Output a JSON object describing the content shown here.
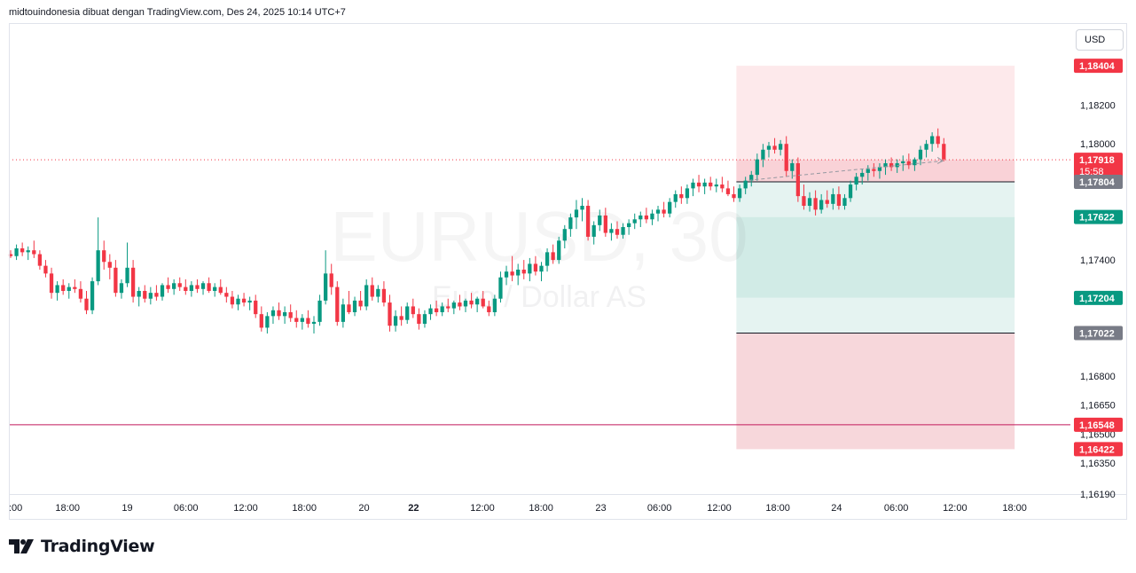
{
  "header": {
    "text": "midtouindonesia dibuat dengan TradingView.com, Des 24, 2025 10:14 UTC+7"
  },
  "currency_button": {
    "label": "USD"
  },
  "watermark": {
    "symbol": "EURUSD, 30",
    "name": "Euro / Dollar AS"
  },
  "brand": {
    "name": "TradingView",
    "logo_icon": "tradingview-logo-icon"
  },
  "colors": {
    "up": "#089981",
    "down": "#f23645",
    "grid_border": "#e0e3eb",
    "stop_zone": "#f7d7db",
    "target_zone_light": "#e5f3f1",
    "target_zone_mid": "#d1ebe6",
    "risk_zone": "#fde9eb",
    "entry_label": "#787b86"
  },
  "chart_data": {
    "type": "candlestick",
    "symbol": "EURUSD",
    "timeframe": "30",
    "ylim": [
      1.1619,
      1.1862
    ],
    "y_ticks": [
      "1,18200",
      "1,18000",
      "1,17400",
      "1,16800",
      "1,16650",
      "1,16500",
      "1,16350",
      "1,16190"
    ],
    "x_ticks": [
      {
        "label": ":00",
        "pos": 0.0,
        "bold": false
      },
      {
        "label": "18:00",
        "pos": 0.058,
        "bold": false
      },
      {
        "label": "19",
        "pos": 0.117,
        "bold": false
      },
      {
        "label": "06:00",
        "pos": 0.175,
        "bold": false
      },
      {
        "label": "12:00",
        "pos": 0.234,
        "bold": false
      },
      {
        "label": "18:00",
        "pos": 0.292,
        "bold": false
      },
      {
        "label": "20",
        "pos": 0.351,
        "bold": false
      },
      {
        "label": "22",
        "pos": 0.4,
        "bold": true
      },
      {
        "label": "12:00",
        "pos": 0.468,
        "bold": false
      },
      {
        "label": "18:00",
        "pos": 0.526,
        "bold": false
      },
      {
        "label": "23",
        "pos": 0.585,
        "bold": false
      },
      {
        "label": "06:00",
        "pos": 0.643,
        "bold": false
      },
      {
        "label": "12:00",
        "pos": 0.702,
        "bold": false
      },
      {
        "label": "18:00",
        "pos": 0.76,
        "bold": false
      },
      {
        "label": "24",
        "pos": 0.818,
        "bold": false
      },
      {
        "label": "06:00",
        "pos": 0.877,
        "bold": false
      },
      {
        "label": "12:00",
        "pos": 0.935,
        "bold": false
      },
      {
        "label": "18:00",
        "pos": 0.994,
        "bold": false
      }
    ],
    "price_labels": [
      {
        "text": "1,18404",
        "value": 1.18404,
        "color": "#f23645"
      },
      {
        "text": "1,17918",
        "sub": "15:58",
        "value": 1.17918,
        "color": "#f23645"
      },
      {
        "text": "1,17804",
        "value": 1.17804,
        "color": "#787b86"
      },
      {
        "text": "1,17622",
        "value": 1.17622,
        "color": "#089981"
      },
      {
        "text": "1,17204",
        "value": 1.17204,
        "color": "#089981"
      },
      {
        "text": "1,17022",
        "value": 1.17022,
        "color": "#787b86"
      },
      {
        "text": "1,16548",
        "value": 1.16548,
        "color": "#f23645"
      },
      {
        "text": "1,16422",
        "value": 1.16422,
        "color": "#f23645"
      }
    ],
    "horizontal_lines": [
      {
        "value": 1.17918,
        "style": "dotted",
        "color": "#f23645"
      },
      {
        "value": 1.16548,
        "style": "solid",
        "color": "#c2185b"
      }
    ],
    "zones": [
      {
        "kind": "risk",
        "top": 1.18404,
        "bottom": 1.17804,
        "color": "#fde9eb"
      },
      {
        "kind": "target-light",
        "top": 1.17804,
        "bottom": 1.17622,
        "color": "#e5f3f1"
      },
      {
        "kind": "target-mid",
        "top": 1.17622,
        "bottom": 1.17204,
        "color": "#d1ebe6"
      },
      {
        "kind": "target-light",
        "top": 1.17204,
        "bottom": 1.17022,
        "color": "#e5f3f1"
      },
      {
        "kind": "stop",
        "top": 1.17022,
        "bottom": 1.16422,
        "color": "#f7d7db"
      }
    ],
    "zone_range": {
      "start": 0.719,
      "end": 0.994
    },
    "position_tool": {
      "entry_range": [
        1.17804,
        1.17918
      ]
    },
    "candle_span": [
      0.0,
      0.924
    ],
    "candles": [
      [
        1.1743,
        1.1745,
        1.1741,
        1.1742
      ],
      [
        1.1742,
        1.1748,
        1.174,
        1.1746
      ],
      [
        1.1746,
        1.1749,
        1.1742,
        1.1744
      ],
      [
        1.1744,
        1.1747,
        1.174,
        1.1745
      ],
      [
        1.1745,
        1.175,
        1.1741,
        1.1743
      ],
      [
        1.1743,
        1.1745,
        1.1735,
        1.1737
      ],
      [
        1.1737,
        1.174,
        1.1731,
        1.1733
      ],
      [
        1.1733,
        1.1736,
        1.172,
        1.1723
      ],
      [
        1.1723,
        1.1729,
        1.1719,
        1.1727
      ],
      [
        1.1727,
        1.173,
        1.1722,
        1.1724
      ],
      [
        1.1724,
        1.1728,
        1.172,
        1.1726
      ],
      [
        1.1726,
        1.173,
        1.1723,
        1.1725
      ],
      [
        1.1725,
        1.1729,
        1.1718,
        1.172
      ],
      [
        1.172,
        1.1724,
        1.1712,
        1.1714
      ],
      [
        1.1714,
        1.1731,
        1.1712,
        1.1729
      ],
      [
        1.1729,
        1.1762,
        1.1727,
        1.1745
      ],
      [
        1.1745,
        1.175,
        1.1735,
        1.1739
      ],
      [
        1.1739,
        1.1743,
        1.173,
        1.1736
      ],
      [
        1.1736,
        1.174,
        1.1721,
        1.1723
      ],
      [
        1.1723,
        1.173,
        1.172,
        1.1728
      ],
      [
        1.1728,
        1.1749,
        1.1726,
        1.1736
      ],
      [
        1.1736,
        1.174,
        1.1718,
        1.1721
      ],
      [
        1.1721,
        1.1726,
        1.1716,
        1.1724
      ],
      [
        1.1724,
        1.1727,
        1.1718,
        1.172
      ],
      [
        1.172,
        1.1726,
        1.1717,
        1.1723
      ],
      [
        1.1723,
        1.1727,
        1.1719,
        1.1721
      ],
      [
        1.1721,
        1.1728,
        1.1719,
        1.1727
      ],
      [
        1.1727,
        1.1731,
        1.1723,
        1.1725
      ],
      [
        1.1725,
        1.173,
        1.1722,
        1.1728
      ],
      [
        1.1728,
        1.1731,
        1.1724,
        1.1726
      ],
      [
        1.1726,
        1.173,
        1.1722,
        1.1724
      ],
      [
        1.1724,
        1.1729,
        1.1721,
        1.1727
      ],
      [
        1.1727,
        1.173,
        1.1723,
        1.1725
      ],
      [
        1.1725,
        1.1729,
        1.1722,
        1.1728
      ],
      [
        1.1728,
        1.1731,
        1.1723,
        1.1724
      ],
      [
        1.1724,
        1.1728,
        1.1721,
        1.1726
      ],
      [
        1.1726,
        1.173,
        1.1722,
        1.1723
      ],
      [
        1.1723,
        1.1726,
        1.1718,
        1.1721
      ],
      [
        1.1721,
        1.1724,
        1.1715,
        1.1717
      ],
      [
        1.1717,
        1.1722,
        1.1714,
        1.172
      ],
      [
        1.172,
        1.1723,
        1.1716,
        1.1718
      ],
      [
        1.1718,
        1.1721,
        1.1714,
        1.1719
      ],
      [
        1.1719,
        1.1722,
        1.171,
        1.1712
      ],
      [
        1.1712,
        1.1716,
        1.1703,
        1.1705
      ],
      [
        1.1705,
        1.1713,
        1.1702,
        1.1711
      ],
      [
        1.1711,
        1.1716,
        1.1707,
        1.1714
      ],
      [
        1.1714,
        1.1718,
        1.1709,
        1.1711
      ],
      [
        1.1711,
        1.1716,
        1.1707,
        1.1713
      ],
      [
        1.1713,
        1.1717,
        1.1708,
        1.171
      ],
      [
        1.171,
        1.1714,
        1.1705,
        1.1708
      ],
      [
        1.1708,
        1.1712,
        1.1704,
        1.171
      ],
      [
        1.171,
        1.1714,
        1.1705,
        1.1707
      ],
      [
        1.1707,
        1.1711,
        1.1702,
        1.1708
      ],
      [
        1.1708,
        1.1722,
        1.1706,
        1.1719
      ],
      [
        1.1719,
        1.1745,
        1.1717,
        1.1733
      ],
      [
        1.1733,
        1.1738,
        1.1722,
        1.1726
      ],
      [
        1.1726,
        1.1729,
        1.1706,
        1.1708
      ],
      [
        1.1708,
        1.172,
        1.1705,
        1.1717
      ],
      [
        1.1717,
        1.1724,
        1.1712,
        1.1713
      ],
      [
        1.1713,
        1.1721,
        1.1711,
        1.1719
      ],
      [
        1.1719,
        1.1724,
        1.1714,
        1.1716
      ],
      [
        1.1716,
        1.173,
        1.1714,
        1.1727
      ],
      [
        1.1727,
        1.1731,
        1.1719,
        1.1721
      ],
      [
        1.1721,
        1.1727,
        1.1718,
        1.1725
      ],
      [
        1.1725,
        1.1729,
        1.1716,
        1.1718
      ],
      [
        1.1718,
        1.1722,
        1.1703,
        1.1706
      ],
      [
        1.1706,
        1.1714,
        1.1703,
        1.1711
      ],
      [
        1.1711,
        1.1716,
        1.1706,
        1.1709
      ],
      [
        1.1709,
        1.1718,
        1.1707,
        1.1716
      ],
      [
        1.1716,
        1.172,
        1.171,
        1.1712
      ],
      [
        1.1712,
        1.1715,
        1.1704,
        1.1707
      ],
      [
        1.1707,
        1.1714,
        1.1705,
        1.1712
      ],
      [
        1.1712,
        1.1717,
        1.1709,
        1.1715
      ],
      [
        1.1715,
        1.1719,
        1.1711,
        1.1713
      ],
      [
        1.1713,
        1.1718,
        1.1711,
        1.1716
      ],
      [
        1.1716,
        1.172,
        1.1713,
        1.1715
      ],
      [
        1.1715,
        1.1719,
        1.1712,
        1.1718
      ],
      [
        1.1718,
        1.1722,
        1.1714,
        1.1716
      ],
      [
        1.1716,
        1.172,
        1.1713,
        1.1719
      ],
      [
        1.1719,
        1.1723,
        1.1715,
        1.1717
      ],
      [
        1.1717,
        1.1721,
        1.1713,
        1.172
      ],
      [
        1.172,
        1.1724,
        1.1715,
        1.1716
      ],
      [
        1.1716,
        1.1719,
        1.1711,
        1.1713
      ],
      [
        1.1713,
        1.1722,
        1.1711,
        1.172
      ],
      [
        1.172,
        1.1734,
        1.1718,
        1.1731
      ],
      [
        1.1731,
        1.1737,
        1.1727,
        1.1734
      ],
      [
        1.1734,
        1.1742,
        1.1729,
        1.1732
      ],
      [
        1.1732,
        1.1738,
        1.1727,
        1.1735
      ],
      [
        1.1735,
        1.174,
        1.173,
        1.1733
      ],
      [
        1.1733,
        1.1741,
        1.1729,
        1.1738
      ],
      [
        1.1738,
        1.1742,
        1.1732,
        1.1734
      ],
      [
        1.1734,
        1.1739,
        1.1729,
        1.1737
      ],
      [
        1.1737,
        1.1746,
        1.1734,
        1.1744
      ],
      [
        1.1744,
        1.1748,
        1.1738,
        1.174
      ],
      [
        1.174,
        1.1752,
        1.1738,
        1.175
      ],
      [
        1.175,
        1.1758,
        1.1746,
        1.1756
      ],
      [
        1.1756,
        1.1764,
        1.1752,
        1.1762
      ],
      [
        1.1762,
        1.1771,
        1.1756,
        1.1766
      ],
      [
        1.1766,
        1.1772,
        1.176,
        1.1768
      ],
      [
        1.1768,
        1.1771,
        1.175,
        1.1752
      ],
      [
        1.1752,
        1.176,
        1.1748,
        1.1758
      ],
      [
        1.1758,
        1.1766,
        1.1755,
        1.1763
      ],
      [
        1.1763,
        1.1767,
        1.1752,
        1.1754
      ],
      [
        1.1754,
        1.1759,
        1.175,
        1.1756
      ],
      [
        1.1756,
        1.176,
        1.1751,
        1.1753
      ],
      [
        1.1753,
        1.1759,
        1.1751,
        1.1757
      ],
      [
        1.1757,
        1.1761,
        1.1753,
        1.1759
      ],
      [
        1.1759,
        1.1764,
        1.1756,
        1.1761
      ],
      [
        1.1761,
        1.1765,
        1.1757,
        1.1763
      ],
      [
        1.1763,
        1.1767,
        1.1759,
        1.1761
      ],
      [
        1.1761,
        1.1766,
        1.1758,
        1.1764
      ],
      [
        1.1764,
        1.1768,
        1.176,
        1.1766
      ],
      [
        1.1766,
        1.177,
        1.1762,
        1.1764
      ],
      [
        1.1764,
        1.1772,
        1.1762,
        1.177
      ],
      [
        1.177,
        1.1776,
        1.1767,
        1.1774
      ],
      [
        1.1774,
        1.1778,
        1.1769,
        1.1772
      ],
      [
        1.1772,
        1.1779,
        1.1769,
        1.1777
      ],
      [
        1.1777,
        1.1782,
        1.1773,
        1.178
      ],
      [
        1.178,
        1.1784,
        1.1775,
        1.1778
      ],
      [
        1.1778,
        1.1782,
        1.1774,
        1.178
      ],
      [
        1.178,
        1.1783,
        1.1776,
        1.1778
      ],
      [
        1.1778,
        1.1782,
        1.1775,
        1.1779
      ],
      [
        1.1779,
        1.1783,
        1.1775,
        1.1777
      ],
      [
        1.1777,
        1.1781,
        1.1773,
        1.1774
      ],
      [
        1.1774,
        1.1778,
        1.177,
        1.1772
      ],
      [
        1.1772,
        1.1779,
        1.177,
        1.1777
      ],
      [
        1.1777,
        1.1783,
        1.1774,
        1.1781
      ],
      [
        1.1781,
        1.1786,
        1.1778,
        1.1784
      ],
      [
        1.1784,
        1.1795,
        1.1781,
        1.1792
      ],
      [
        1.1792,
        1.18,
        1.1788,
        1.1797
      ],
      [
        1.1797,
        1.1801,
        1.1793,
        1.1799
      ],
      [
        1.1799,
        1.1803,
        1.1795,
        1.1797
      ],
      [
        1.1797,
        1.1802,
        1.1794,
        1.18
      ],
      [
        1.18,
        1.1804,
        1.1783,
        1.1786
      ],
      [
        1.1786,
        1.1792,
        1.1782,
        1.179
      ],
      [
        1.179,
        1.1793,
        1.177,
        1.1773
      ],
      [
        1.1773,
        1.1779,
        1.1766,
        1.1768
      ],
      [
        1.1768,
        1.1775,
        1.1765,
        1.1772
      ],
      [
        1.1772,
        1.1776,
        1.1763,
        1.1766
      ],
      [
        1.1766,
        1.1774,
        1.1764,
        1.1771
      ],
      [
        1.1771,
        1.1776,
        1.1767,
        1.1769
      ],
      [
        1.1769,
        1.1777,
        1.1766,
        1.1774
      ],
      [
        1.1774,
        1.1778,
        1.1766,
        1.1768
      ],
      [
        1.1768,
        1.1774,
        1.1766,
        1.1772
      ],
      [
        1.1772,
        1.1781,
        1.177,
        1.1779
      ],
      [
        1.1779,
        1.1785,
        1.1776,
        1.1783
      ],
      [
        1.1783,
        1.1787,
        1.1779,
        1.1785
      ],
      [
        1.1785,
        1.1789,
        1.1781,
        1.1787
      ],
      [
        1.1787,
        1.179,
        1.1783,
        1.1786
      ],
      [
        1.1786,
        1.179,
        1.1782,
        1.1788
      ],
      [
        1.1788,
        1.1792,
        1.1784,
        1.179
      ],
      [
        1.179,
        1.1793,
        1.1786,
        1.1788
      ],
      [
        1.1788,
        1.1792,
        1.1785,
        1.179
      ],
      [
        1.179,
        1.1794,
        1.1786,
        1.1791
      ],
      [
        1.1791,
        1.1795,
        1.1787,
        1.1789
      ],
      [
        1.1789,
        1.1793,
        1.1786,
        1.1792
      ],
      [
        1.1792,
        1.1799,
        1.1789,
        1.1797
      ],
      [
        1.1797,
        1.1802,
        1.1793,
        1.18
      ],
      [
        1.18,
        1.1806,
        1.1796,
        1.1804
      ],
      [
        1.1804,
        1.1808,
        1.1798,
        1.18
      ],
      [
        1.18,
        1.1803,
        1.1791,
        1.1792
      ]
    ]
  }
}
